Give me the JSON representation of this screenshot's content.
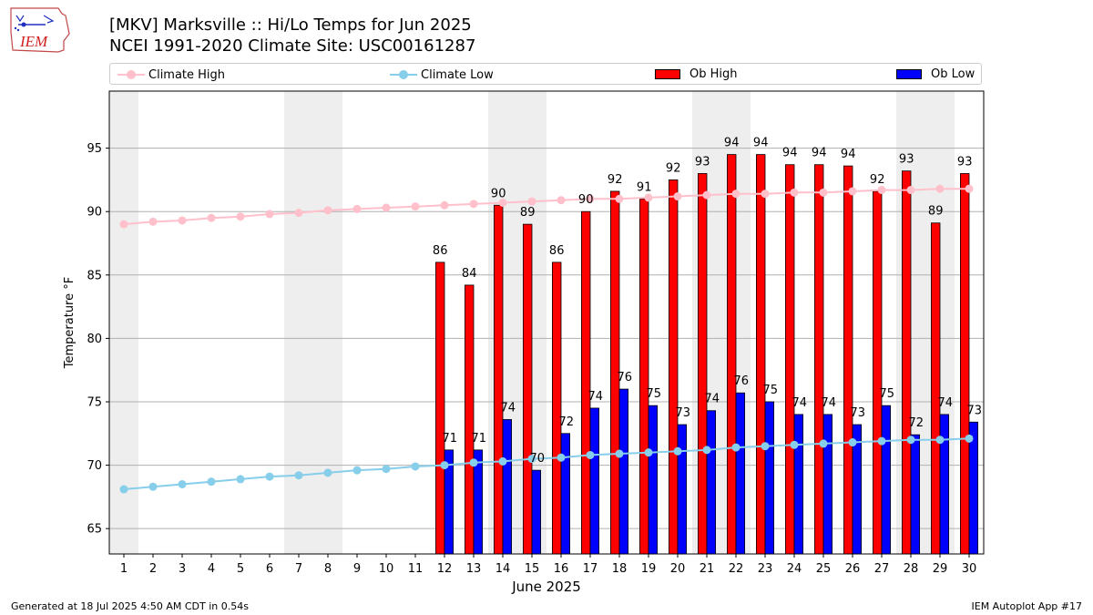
{
  "header": {
    "title": "[MKV] Marksville :: Hi/Lo Temps for Jun 2025",
    "subtitle": "NCEI 1991-2020 Climate Site: USC00161287",
    "logo_text": "IEM"
  },
  "footer": {
    "generated": "Generated at 18 Jul 2025 4:50 AM CDT in 0.54s",
    "app": "IEM Autoplot App #17"
  },
  "colors": {
    "climate_high": "#ffc0cb",
    "climate_low": "#87ceeb",
    "ob_high": "#ff0000",
    "ob_low": "#0000ff",
    "weekend_shade": "#eeeeee",
    "grid": "#b0b0b0"
  },
  "chart_data": {
    "type": "bar",
    "xlabel": "June 2025",
    "ylabel": "Temperature °F",
    "xlim": [
      0.5,
      30.5
    ],
    "ylim": [
      63.0,
      99.5
    ],
    "yticks": [
      65,
      70,
      75,
      80,
      85,
      90,
      95
    ],
    "grid": "horizontal",
    "legend_position": "top",
    "shaded_days": [
      [
        1,
        1
      ],
      [
        7,
        8
      ],
      [
        14,
        15
      ],
      [
        21,
        22
      ],
      [
        28,
        29
      ]
    ],
    "days": [
      1,
      2,
      3,
      4,
      5,
      6,
      7,
      8,
      9,
      10,
      11,
      12,
      13,
      14,
      15,
      16,
      17,
      18,
      19,
      20,
      21,
      22,
      23,
      24,
      25,
      26,
      27,
      28,
      29,
      30
    ],
    "series": [
      {
        "name": "Climate High",
        "kind": "line",
        "values": [
          89.0,
          89.2,
          89.3,
          89.5,
          89.6,
          89.8,
          89.9,
          90.1,
          90.2,
          90.3,
          90.4,
          90.5,
          90.6,
          90.7,
          90.8,
          90.9,
          91.0,
          91.0,
          91.1,
          91.2,
          91.3,
          91.4,
          91.4,
          91.5,
          91.5,
          91.6,
          91.7,
          91.7,
          91.8,
          91.8
        ]
      },
      {
        "name": "Climate Low",
        "kind": "line",
        "values": [
          68.1,
          68.3,
          68.5,
          68.7,
          68.9,
          69.1,
          69.2,
          69.4,
          69.6,
          69.7,
          69.9,
          70.0,
          70.2,
          70.3,
          70.5,
          70.6,
          70.8,
          70.9,
          71.0,
          71.1,
          71.2,
          71.4,
          71.5,
          71.6,
          71.7,
          71.8,
          71.9,
          72.0,
          72.0,
          72.1
        ]
      },
      {
        "name": "Ob High",
        "kind": "bar",
        "values": [
          null,
          null,
          null,
          null,
          null,
          null,
          null,
          null,
          null,
          null,
          null,
          86.0,
          84.2,
          90.5,
          89.0,
          86.0,
          90.0,
          91.6,
          91.0,
          92.5,
          93.0,
          94.5,
          94.5,
          93.7,
          93.7,
          93.6,
          91.6,
          93.2,
          89.1,
          93.0
        ],
        "labels": [
          null,
          null,
          null,
          null,
          null,
          null,
          null,
          null,
          null,
          null,
          null,
          "86",
          "84",
          "90",
          "89",
          "86",
          "90",
          "92",
          "91",
          "92",
          "93",
          "94",
          "94",
          "94",
          "94",
          "94",
          "92",
          "93",
          "89",
          "93"
        ]
      },
      {
        "name": "Ob Low",
        "kind": "bar",
        "values": [
          null,
          null,
          null,
          null,
          null,
          null,
          null,
          null,
          null,
          null,
          null,
          71.2,
          71.2,
          73.6,
          69.6,
          72.5,
          74.5,
          76.0,
          74.7,
          73.2,
          74.3,
          75.7,
          75.0,
          74.0,
          74.0,
          73.2,
          74.7,
          72.4,
          74.0,
          73.4
        ],
        "labels": [
          null,
          null,
          null,
          null,
          null,
          null,
          null,
          null,
          null,
          null,
          null,
          "71",
          "71",
          "74",
          "70",
          "72",
          "74",
          "76",
          "75",
          "73",
          "74",
          "76",
          "75",
          "74",
          "74",
          "73",
          "75",
          "72",
          "74",
          "73"
        ]
      }
    ]
  }
}
